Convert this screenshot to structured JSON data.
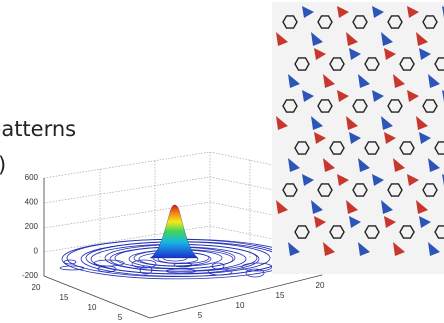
{
  "slide_text": {
    "line_1": "patterns",
    "line_2": ")"
  },
  "surface_plot": {
    "z_ticks": [
      600,
      400,
      200,
      0,
      -200
    ],
    "y_ticks": [
      20,
      15,
      10,
      5
    ],
    "x_ticks": [
      5,
      10,
      15,
      20
    ]
  }
}
